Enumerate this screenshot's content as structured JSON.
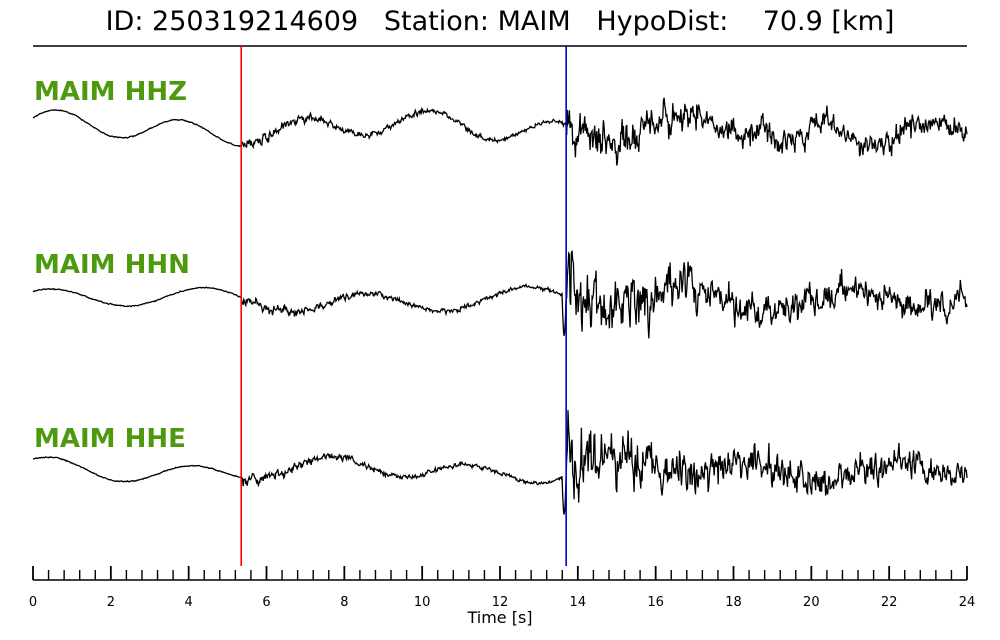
{
  "header": {
    "id_label": "ID:",
    "event_id": "250319214609",
    "station_label": "Station:",
    "station": "MAIM",
    "hypodist_label": "HypoDist:",
    "hypodist_value": "70.9",
    "hypodist_unit": "[km]"
  },
  "colors": {
    "label_green": "#4d9a0f",
    "p_pick": "#ff0000",
    "s_pick": "#0000cc",
    "trace": "#000000"
  },
  "chart_data": {
    "type": "line",
    "title": "ID: 250319214609   Station: MAIM   HypoDist:    70.9 [km]",
    "xlabel": "Time [s]",
    "xlim": [
      0,
      24
    ],
    "x_major_ticks": [
      0,
      2,
      4,
      6,
      8,
      10,
      12,
      14,
      16,
      18,
      20,
      22,
      24
    ],
    "x_tick_labels": [
      "0",
      "2",
      "4",
      "6",
      "8",
      "10",
      "12",
      "14",
      "16",
      "18",
      "20",
      "22",
      "24"
    ],
    "x_minor_step": 0.4,
    "grid": false,
    "picks": [
      {
        "phase": "P",
        "time": 5.35,
        "color": "#ff0000"
      },
      {
        "phase": "S",
        "time": 13.7,
        "color": "#0000cc"
      }
    ],
    "series": [
      {
        "name": "MAIM HHZ"
      },
      {
        "name": "MAIM HHN"
      },
      {
        "name": "MAIM HHE"
      }
    ]
  }
}
